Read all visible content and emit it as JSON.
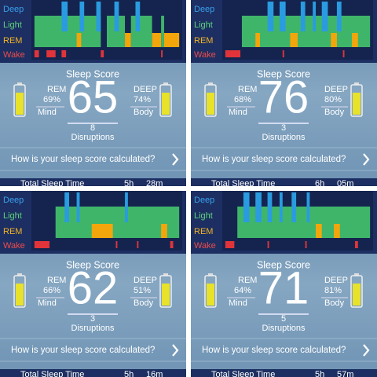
{
  "labels": {
    "deep": "Deep",
    "light": "Light",
    "rem": "REM",
    "wake": "Wake",
    "sleep_score": "Sleep Score",
    "rem_caps": "REM",
    "mind": "Mind",
    "deep_caps": "DEEP",
    "body": "Body",
    "disruptions": "Disruptions",
    "question": "How is your sleep score calculated?",
    "total": "Total Sleep Time"
  },
  "panels": [
    {
      "score": "65",
      "rem": "69%",
      "deep": "74%",
      "disruptions": "8",
      "hours": "5h",
      "minutes": "28m"
    },
    {
      "score": "76",
      "rem": "68%",
      "deep": "80%",
      "disruptions": "3",
      "hours": "6h",
      "minutes": "05m"
    },
    {
      "score": "62",
      "rem": "66%",
      "deep": "51%",
      "disruptions": "3",
      "hours": "5h",
      "minutes": "16m"
    },
    {
      "score": "71",
      "rem": "64%",
      "deep": "81%",
      "disruptions": "5",
      "hours": "5h",
      "minutes": "57m"
    }
  ]
}
